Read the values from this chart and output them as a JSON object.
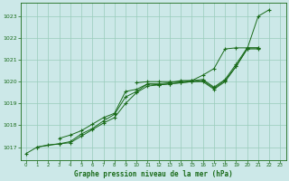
{
  "title": "Graphe pression niveau de la mer (hPa)",
  "bg_color": "#cce8e8",
  "grid_color": "#99ccbb",
  "line_color": "#1a6b1a",
  "marker_color": "#1a6b1a",
  "text_color": "#1a6b1a",
  "xlim": [
    -0.5,
    23.5
  ],
  "ylim": [
    1016.4,
    1023.6
  ],
  "yticks": [
    1017,
    1018,
    1019,
    1020,
    1021,
    1022,
    1023
  ],
  "xticks": [
    0,
    1,
    2,
    3,
    4,
    5,
    6,
    7,
    8,
    9,
    10,
    11,
    12,
    13,
    14,
    15,
    16,
    17,
    18,
    19,
    20,
    21,
    22,
    23
  ],
  "s1_x": [
    0,
    1,
    2,
    3,
    4,
    5,
    6,
    7,
    8,
    9,
    10,
    11,
    12,
    13,
    14,
    15,
    16,
    17,
    18,
    19,
    20,
    21,
    22
  ],
  "s1_y": [
    1016.7,
    1017.0,
    1017.1,
    1017.15,
    1017.2,
    1017.5,
    1017.8,
    1018.1,
    1018.35,
    1019.0,
    1019.5,
    1019.8,
    1019.85,
    1019.9,
    1019.95,
    1020.0,
    1020.0,
    1019.65,
    1020.0,
    1020.7,
    1021.5,
    1023.0,
    1023.3
  ],
  "s2_x": [
    1,
    3,
    4,
    5,
    6,
    7,
    8,
    9,
    10,
    11,
    12,
    13,
    14,
    15,
    16,
    17,
    18,
    19,
    20,
    21
  ],
  "s2_y": [
    1017.0,
    1017.15,
    1017.25,
    1017.6,
    1017.85,
    1018.2,
    1018.5,
    1019.3,
    1019.55,
    1019.9,
    1019.85,
    1019.9,
    1019.95,
    1020.0,
    1020.05,
    1019.7,
    1020.05,
    1020.7,
    1021.5,
    1021.5
  ],
  "s3_x": [
    3,
    4,
    5,
    6,
    7,
    8,
    9,
    10,
    11,
    12,
    13,
    14,
    15,
    16,
    17,
    18,
    19,
    20,
    21
  ],
  "s3_y": [
    1017.4,
    1017.55,
    1017.75,
    1018.05,
    1018.35,
    1018.55,
    1019.55,
    1019.65,
    1019.9,
    1019.9,
    1019.95,
    1020.05,
    1020.05,
    1020.1,
    1019.75,
    1020.1,
    1020.8,
    1021.55,
    1021.55
  ],
  "s4_x": [
    10,
    11,
    12,
    13,
    14,
    15,
    16,
    17,
    18,
    19,
    20,
    21
  ],
  "s4_y": [
    1019.95,
    1020.0,
    1020.0,
    1020.0,
    1020.0,
    1020.05,
    1020.3,
    1020.6,
    1021.5,
    1021.55,
    1021.55,
    1021.55
  ]
}
